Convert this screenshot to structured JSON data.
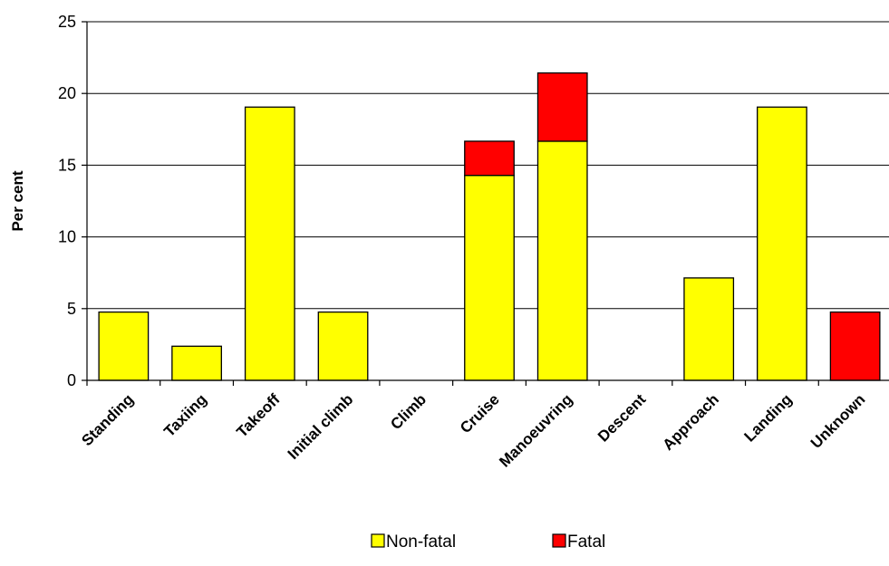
{
  "chart_data": {
    "type": "bar",
    "stacked": true,
    "categories": [
      "Standing",
      "Taxiing",
      "Takeoff",
      "Initial climb",
      "Climb",
      "Cruise",
      "Manoeuvring",
      "Descent",
      "Approach",
      "Landing",
      "Unknown"
    ],
    "series": [
      {
        "name": "Non-fatal",
        "color": "#ffff00",
        "values": [
          4.76,
          2.38,
          19.05,
          4.76,
          0,
          14.29,
          16.67,
          0,
          7.14,
          19.05,
          0
        ]
      },
      {
        "name": "Fatal",
        "color": "#ff0000",
        "values": [
          0,
          0,
          0,
          0,
          0,
          2.38,
          4.76,
          0,
          0,
          0,
          4.76
        ]
      }
    ],
    "ylabel": "Per cent",
    "xlabel": "",
    "ylim": [
      0,
      25
    ],
    "yticks": [
      0,
      5,
      10,
      15,
      20,
      25
    ],
    "grid": true,
    "legend_position": "bottom"
  }
}
